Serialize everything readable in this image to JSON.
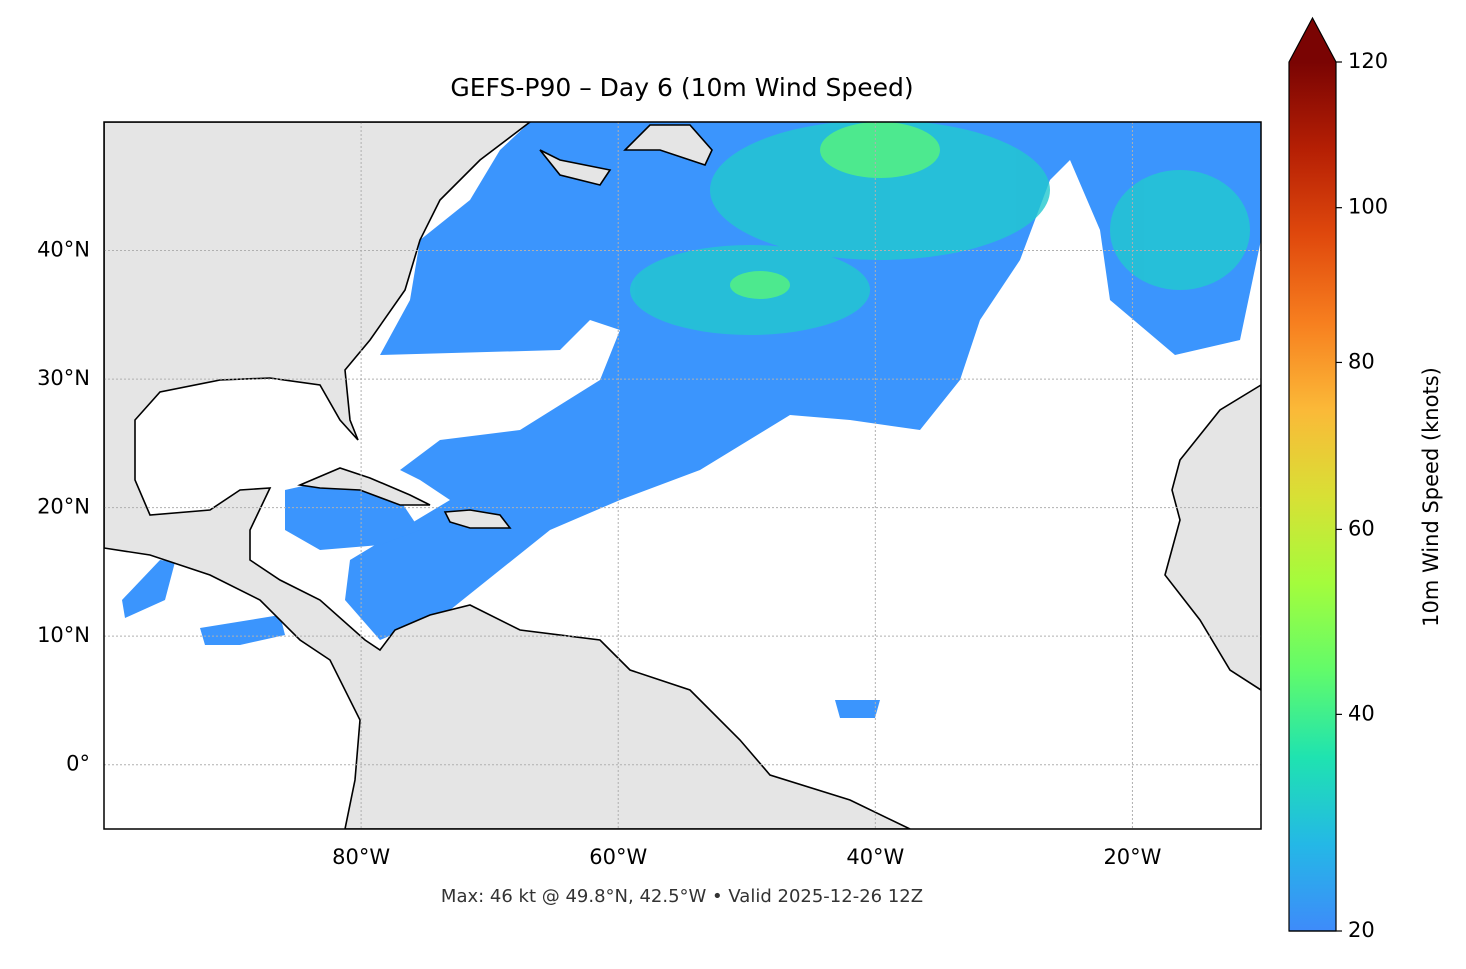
{
  "chart_data": {
    "type": "map",
    "title": "GEFS-P90 – Day 6 (10m Wind Speed)",
    "footnote": "Max: 46 kt @ 49.8°N, 42.5°W • Valid 2025-12-26 12Z",
    "xlim": [
      -100,
      -10
    ],
    "ylim": [
      -5,
      50
    ],
    "xticks": [
      {
        "value": -80,
        "label": "80°W"
      },
      {
        "value": -60,
        "label": "60°W"
      },
      {
        "value": -40,
        "label": "40°W"
      },
      {
        "value": -20,
        "label": "20°W"
      }
    ],
    "yticks": [
      {
        "value": 0,
        "label": "0°"
      },
      {
        "value": 10,
        "label": "10°N"
      },
      {
        "value": 20,
        "label": "20°N"
      },
      {
        "value": 30,
        "label": "30°N"
      },
      {
        "value": 40,
        "label": "40°N"
      }
    ],
    "grid": true,
    "colorbar": {
      "label": "10m Wind Speed (knots)",
      "clim": [
        20,
        120
      ],
      "ticks": [
        20,
        40,
        60,
        80,
        100,
        120
      ],
      "norm": "power",
      "gamma": 0.7,
      "extend": "max",
      "colors": [
        "#3e8bfa",
        "#24b8e6",
        "#1fe3b0",
        "#62fb6a",
        "#a4fc3c",
        "#d8e035",
        "#fbb938",
        "#f77f1f",
        "#e0490d",
        "#b51f04",
        "#7a0403"
      ]
    }
  }
}
